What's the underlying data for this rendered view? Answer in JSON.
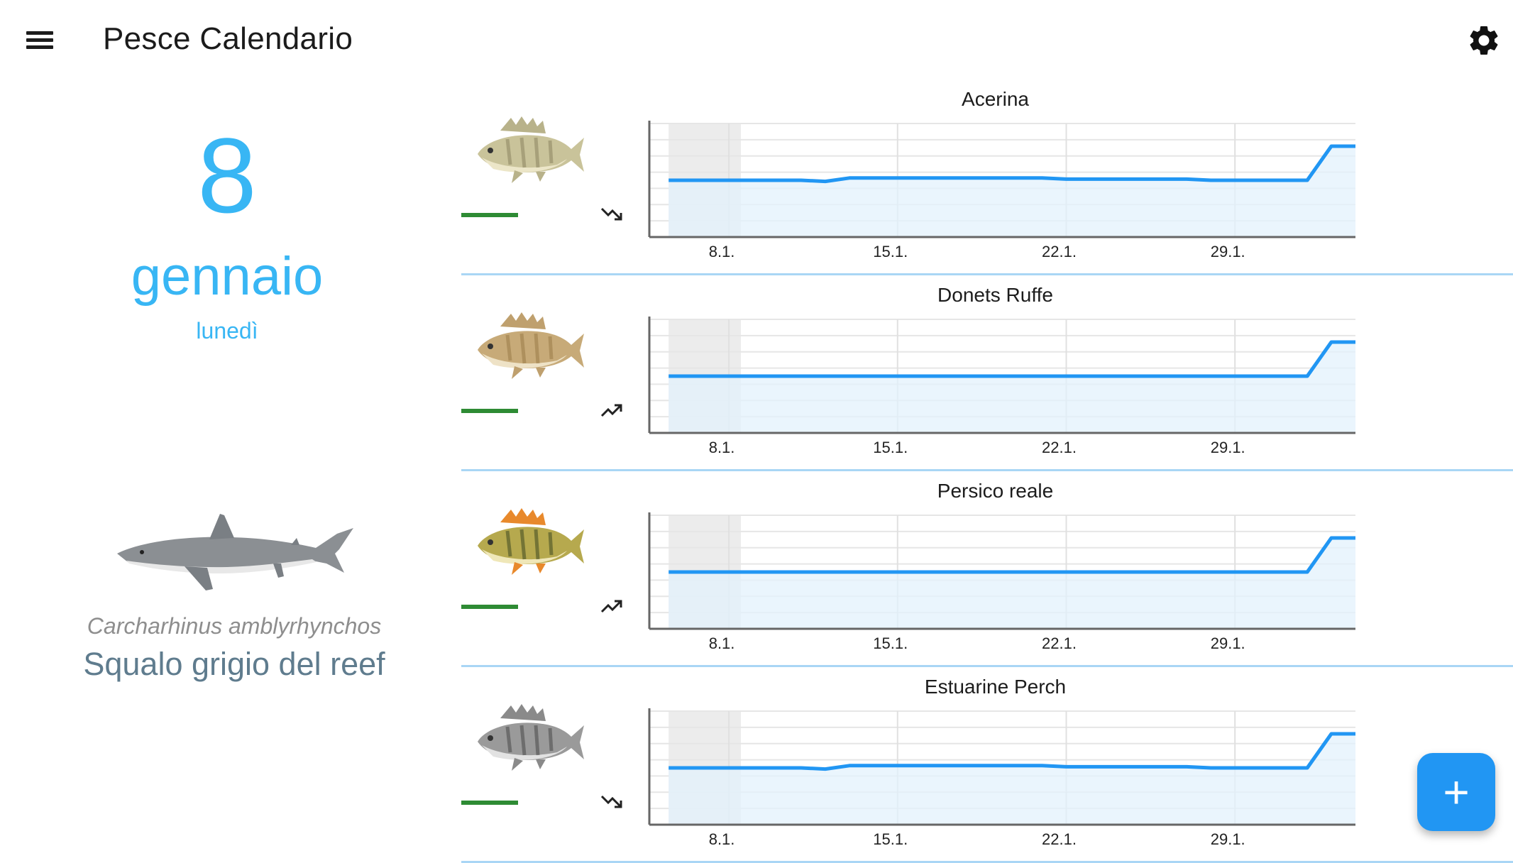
{
  "app": {
    "title": "Pesce Calendario",
    "menu_icon": "hamburger-menu-icon",
    "settings_icon": "gear-icon"
  },
  "date": {
    "day": "8",
    "month": "gennaio",
    "weekday": "lunedì"
  },
  "featured": {
    "scientific_name": "Carcharhinus amblyrhynchos",
    "common_name": "Squalo grigio del reef",
    "image": "grey-reef-shark-image"
  },
  "colors": {
    "accent": "#38b6f4",
    "line": "#2196f3",
    "fill": "#e3f2fc",
    "status_green": "#2e8b34",
    "fab": "#2196f3",
    "common_name": "#5f7c8e"
  },
  "fish": [
    {
      "name": "Acerina",
      "trend": "down",
      "trend_icon": "trending-down-icon",
      "image": "ruffe-fish-image",
      "chart_data": {
        "type": "area",
        "x_ticks": [
          "8.1.",
          "15.1.",
          "22.1.",
          "29.1."
        ],
        "x": [
          5.5,
          6,
          7,
          8,
          9,
          10,
          11,
          12,
          13,
          14,
          15,
          16,
          17,
          18,
          19,
          20,
          21,
          22,
          23,
          24,
          25,
          26,
          27,
          28,
          29,
          30,
          31,
          32,
          33,
          34
        ],
        "y": [
          0.5,
          0.5,
          0.5,
          0.5,
          0.5,
          0.5,
          0.5,
          0.49,
          0.52,
          0.52,
          0.52,
          0.52,
          0.52,
          0.52,
          0.52,
          0.52,
          0.52,
          0.51,
          0.51,
          0.51,
          0.51,
          0.51,
          0.51,
          0.5,
          0.5,
          0.5,
          0.5,
          0.5,
          0.8,
          0.8
        ],
        "highlight_range": [
          5.5,
          8.5
        ]
      }
    },
    {
      "name": "Donets Ruffe",
      "trend": "up",
      "trend_icon": "trending-up-icon",
      "image": "donets-ruffe-fish-image",
      "chart_data": {
        "type": "area",
        "x_ticks": [
          "8.1.",
          "15.1.",
          "22.1.",
          "29.1."
        ],
        "x": [
          5.5,
          8,
          12,
          16,
          20,
          24,
          28,
          31,
          32,
          33,
          34
        ],
        "y": [
          0.5,
          0.5,
          0.5,
          0.5,
          0.5,
          0.5,
          0.5,
          0.5,
          0.5,
          0.8,
          0.8
        ],
        "highlight_range": [
          5.5,
          8.5
        ]
      }
    },
    {
      "name": "Persico reale",
      "trend": "up",
      "trend_icon": "trending-up-icon",
      "image": "european-perch-fish-image",
      "chart_data": {
        "type": "area",
        "x_ticks": [
          "8.1.",
          "15.1.",
          "22.1.",
          "29.1."
        ],
        "x": [
          5.5,
          8,
          12,
          16,
          20,
          24,
          28,
          31,
          32,
          33,
          34
        ],
        "y": [
          0.5,
          0.5,
          0.5,
          0.5,
          0.5,
          0.5,
          0.5,
          0.5,
          0.5,
          0.8,
          0.8
        ],
        "highlight_range": [
          5.5,
          8.5
        ]
      }
    },
    {
      "name": "Estuarine Perch",
      "trend": "down",
      "trend_icon": "trending-down-icon",
      "image": "estuarine-perch-fish-image",
      "chart_data": {
        "type": "area",
        "x_ticks": [
          "8.1.",
          "15.1.",
          "22.1.",
          "29.1."
        ],
        "x": [
          5.5,
          6,
          7,
          8,
          9,
          10,
          11,
          12,
          13,
          14,
          15,
          16,
          17,
          18,
          19,
          20,
          21,
          22,
          23,
          24,
          25,
          26,
          27,
          28,
          29,
          30,
          31,
          32,
          33,
          34
        ],
        "y": [
          0.5,
          0.5,
          0.5,
          0.5,
          0.5,
          0.5,
          0.5,
          0.49,
          0.52,
          0.52,
          0.52,
          0.52,
          0.52,
          0.52,
          0.52,
          0.52,
          0.52,
          0.51,
          0.51,
          0.51,
          0.51,
          0.51,
          0.51,
          0.5,
          0.5,
          0.5,
          0.5,
          0.5,
          0.8,
          0.8
        ],
        "highlight_range": [
          5.5,
          8.5
        ]
      }
    }
  ],
  "fab": {
    "label": "+",
    "icon": "add-icon"
  }
}
